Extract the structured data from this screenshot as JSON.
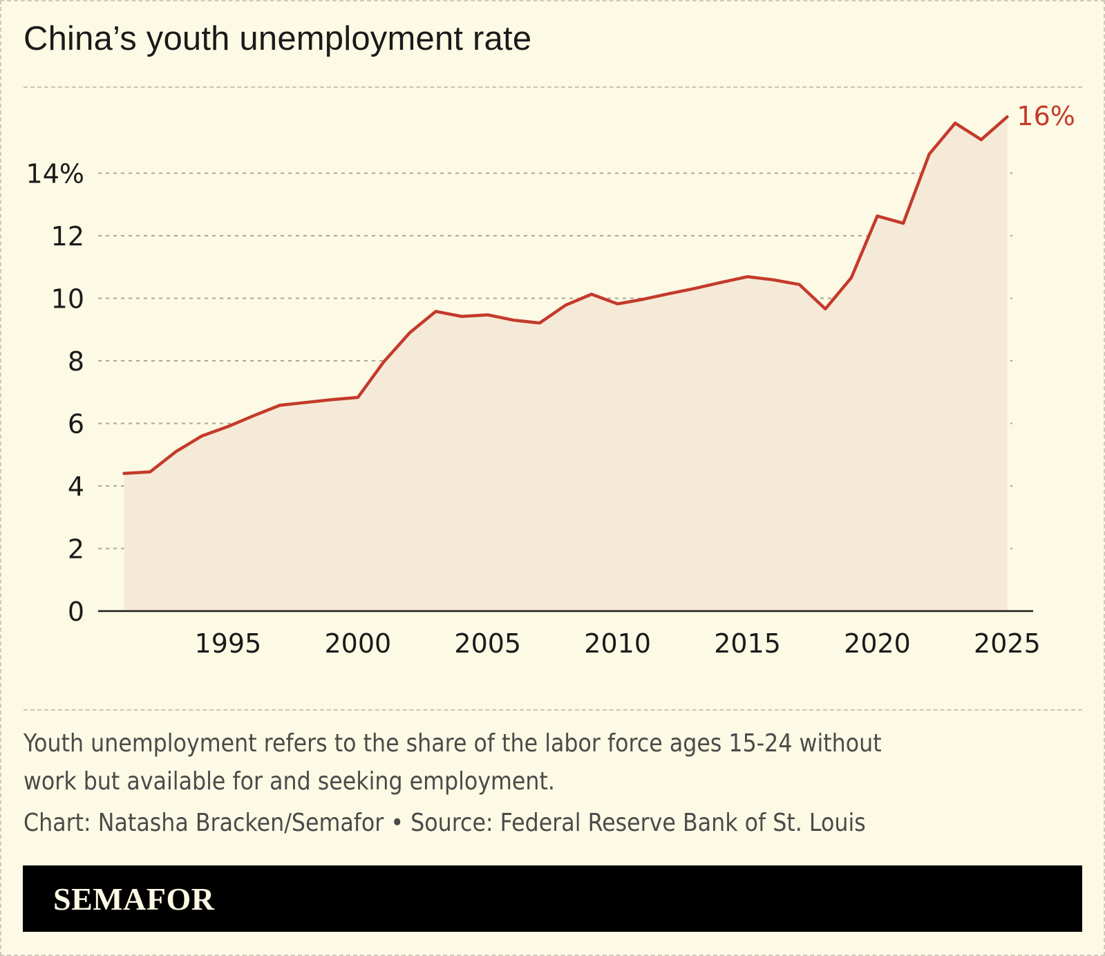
{
  "title": "China’s youth unemployment rate",
  "note": "Youth unemployment refers to the share of the labor force ages 15-24 without work but available for and seeking employment.",
  "credit": "Chart: Natasha Bracken/Semafor • Source: Federal Reserve Bank of St. Louis",
  "logo": "SEMAFOR",
  "colors": {
    "line": "#c43a2a",
    "area": "#f5ead7",
    "background": "#fcf9e4"
  },
  "chart_data": {
    "type": "area",
    "title": "China’s youth unemployment rate",
    "xlim": [
      1990,
      2026
    ],
    "ylim": [
      0,
      16
    ],
    "x_ticks": [
      1995,
      2000,
      2005,
      2010,
      2015,
      2020,
      2025
    ],
    "x_tick_labels": [
      "1995",
      "2000",
      "2005",
      "2010",
      "2015",
      "2020",
      "2025"
    ],
    "y_ticks": [
      0,
      2,
      4,
      6,
      8,
      10,
      12,
      14
    ],
    "y_tick_labels": [
      "0",
      "2",
      "4",
      "6",
      "8",
      "10",
      "12",
      "14%"
    ],
    "grid": "horizontal dashed",
    "end_label": "16%",
    "x": [
      1991,
      1992,
      1993,
      1994,
      1995,
      1996,
      1997,
      1998,
      1999,
      2000,
      2001,
      2002,
      2003,
      2004,
      2005,
      2006,
      2007,
      2008,
      2009,
      2010,
      2011,
      2012,
      2013,
      2014,
      2015,
      2016,
      2017,
      2018,
      2019,
      2020,
      2021,
      2022,
      2023,
      2024,
      2025
    ],
    "values": [
      4.4,
      4.45,
      5.1,
      5.6,
      5.9,
      6.25,
      6.58,
      6.67,
      6.76,
      6.83,
      7.97,
      8.9,
      9.58,
      9.42,
      9.47,
      9.3,
      9.21,
      9.78,
      10.13,
      9.82,
      9.97,
      10.15,
      10.32,
      10.51,
      10.69,
      10.59,
      10.44,
      9.66,
      10.66,
      12.63,
      12.4,
      14.61,
      15.6,
      15.07,
      15.8
    ]
  }
}
